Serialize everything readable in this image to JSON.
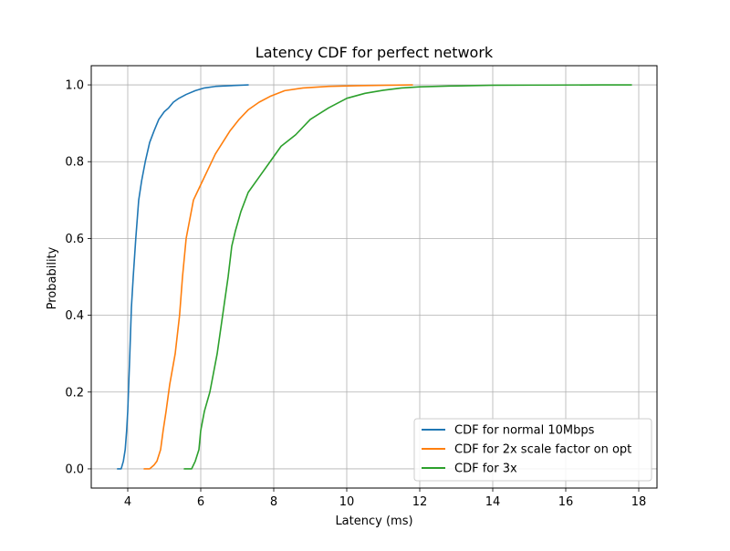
{
  "chart_data": {
    "type": "line",
    "title": "Latency CDF for perfect network",
    "xlabel": "Latency (ms)",
    "ylabel": "Probability",
    "xlim": [
      3.0,
      18.5
    ],
    "ylim": [
      -0.05,
      1.05
    ],
    "xticks": [
      4,
      6,
      8,
      10,
      12,
      14,
      16,
      18
    ],
    "yticks": [
      0.0,
      0.2,
      0.4,
      0.6,
      0.8,
      1.0
    ],
    "xtick_labels": [
      "4",
      "6",
      "8",
      "10",
      "12",
      "14",
      "16",
      "18"
    ],
    "ytick_labels": [
      "0.0",
      "0.2",
      "0.4",
      "0.6",
      "0.8",
      "1.0"
    ],
    "grid": true,
    "legend_position": "lower-right",
    "series": [
      {
        "name": "CDF for normal 10Mbps",
        "color": "#1f77b4",
        "x": [
          3.72,
          3.82,
          3.88,
          3.93,
          3.97,
          4.0,
          4.05,
          4.1,
          4.15,
          4.22,
          4.3,
          4.38,
          4.48,
          4.6,
          4.72,
          4.85,
          5.0,
          5.12,
          5.25,
          5.4,
          5.6,
          5.85,
          6.1,
          6.4,
          6.8,
          7.3
        ],
        "y": [
          0.0,
          0.0,
          0.02,
          0.05,
          0.1,
          0.15,
          0.28,
          0.42,
          0.5,
          0.6,
          0.7,
          0.75,
          0.8,
          0.85,
          0.88,
          0.91,
          0.93,
          0.94,
          0.955,
          0.965,
          0.975,
          0.985,
          0.992,
          0.996,
          0.998,
          1.0
        ],
        "visible_values": []
      },
      {
        "name": "CDF for 2x scale factor on opt",
        "color": "#ff7f0e",
        "x": [
          4.45,
          4.6,
          4.72,
          4.8,
          4.9,
          4.97,
          5.05,
          5.15,
          5.3,
          5.42,
          5.5,
          5.6,
          5.7,
          5.8,
          5.9,
          6.05,
          6.25,
          6.4,
          6.6,
          6.8,
          7.05,
          7.3,
          7.6,
          7.9,
          8.3,
          8.8,
          9.5,
          10.3,
          11.1,
          11.8
        ],
        "y": [
          0.0,
          0.0,
          0.01,
          0.02,
          0.05,
          0.1,
          0.15,
          0.22,
          0.3,
          0.4,
          0.5,
          0.6,
          0.65,
          0.7,
          0.72,
          0.75,
          0.79,
          0.82,
          0.85,
          0.88,
          0.91,
          0.935,
          0.955,
          0.97,
          0.985,
          0.992,
          0.996,
          0.998,
          0.999,
          1.0
        ],
        "visible_values": []
      },
      {
        "name": "CDF for 3x",
        "color": "#2ca02c",
        "x": [
          5.55,
          5.75,
          5.85,
          5.95,
          6.0,
          6.1,
          6.25,
          6.45,
          6.6,
          6.75,
          6.85,
          6.95,
          7.1,
          7.3,
          7.6,
          7.9,
          8.2,
          8.6,
          9.0,
          9.5,
          10.0,
          10.5,
          11.0,
          11.5,
          12.0,
          12.8,
          14.0,
          15.5,
          17.0,
          17.8
        ],
        "y": [
          0.0,
          0.0,
          0.02,
          0.05,
          0.1,
          0.15,
          0.2,
          0.3,
          0.4,
          0.5,
          0.58,
          0.62,
          0.67,
          0.72,
          0.76,
          0.8,
          0.84,
          0.87,
          0.91,
          0.94,
          0.965,
          0.978,
          0.986,
          0.992,
          0.995,
          0.997,
          0.999,
          0.9995,
          1.0,
          1.0
        ],
        "visible_values": []
      }
    ]
  }
}
